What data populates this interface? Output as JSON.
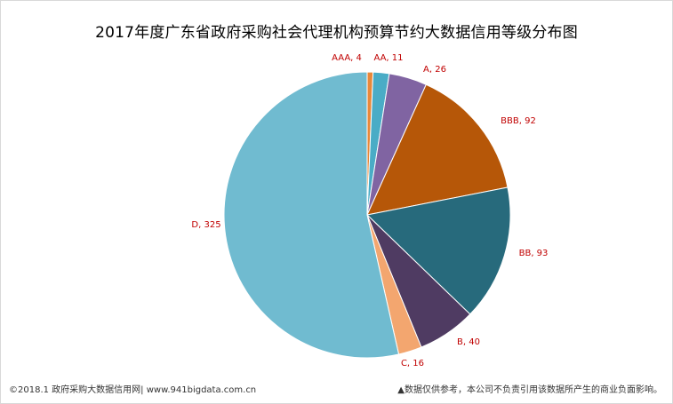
{
  "chart_data": {
    "type": "pie",
    "title": "2017年度广东省政府采购社会代理机构预算节约大数据信用等级分布图",
    "slices": [
      {
        "label": "AAA",
        "value": 4,
        "color": "#e8883a"
      },
      {
        "label": "AA",
        "value": 11,
        "color": "#4aacc6"
      },
      {
        "label": "A",
        "value": 26,
        "color": "#8064a2"
      },
      {
        "label": "BBB",
        "value": 92,
        "color": "#b65708"
      },
      {
        "label": "BB",
        "value": 93,
        "color": "#276a7c"
      },
      {
        "label": "B",
        "value": 40,
        "color": "#4f3b62"
      },
      {
        "label": "C",
        "value": 16,
        "color": "#f3a66f"
      },
      {
        "label": "D",
        "value": 325,
        "color": "#70bbd0"
      }
    ],
    "legend": "none"
  },
  "footer": {
    "left": "©2018.1 政府采购大数据信用网| www.941bigdata.com.cn",
    "right": "▲数据仅供参考，本公司不负责引用该数据所产生的商业负面影响。"
  }
}
